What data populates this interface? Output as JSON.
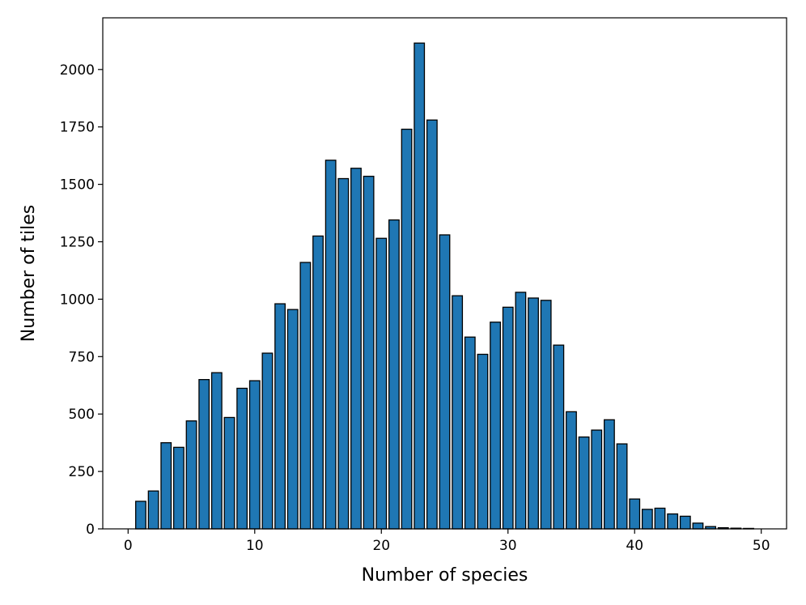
{
  "chart_data": {
    "type": "bar",
    "title": "",
    "xlabel": "Number of species",
    "ylabel": "Number of tiles",
    "xlim": [
      -2,
      52
    ],
    "ylim": [
      0,
      2225
    ],
    "x_ticks": [
      0,
      10,
      20,
      30,
      40,
      50
    ],
    "y_ticks": [
      0,
      250,
      500,
      750,
      1000,
      1250,
      1500,
      1750,
      2000
    ],
    "grid": false,
    "legend": "none",
    "bar_color": "#1f77b4",
    "edge_color": "#000000",
    "x": [
      1,
      2,
      3,
      4,
      5,
      6,
      7,
      8,
      9,
      10,
      11,
      12,
      13,
      14,
      15,
      16,
      17,
      18,
      19,
      20,
      21,
      22,
      23,
      24,
      25,
      26,
      27,
      28,
      29,
      30,
      31,
      32,
      33,
      34,
      35,
      36,
      37,
      38,
      39,
      40,
      41,
      42,
      43,
      44,
      45,
      46,
      47,
      48,
      49
    ],
    "values": [
      120,
      165,
      375,
      355,
      470,
      650,
      680,
      485,
      612,
      645,
      765,
      980,
      955,
      1160,
      1275,
      1605,
      1525,
      1570,
      1535,
      1265,
      1345,
      1740,
      2115,
      1780,
      1280,
      1015,
      835,
      760,
      900,
      965,
      1030,
      1005,
      995,
      800,
      510,
      400,
      430,
      475,
      370,
      130,
      85,
      90,
      65,
      55,
      25,
      10,
      5,
      3,
      2
    ]
  }
}
